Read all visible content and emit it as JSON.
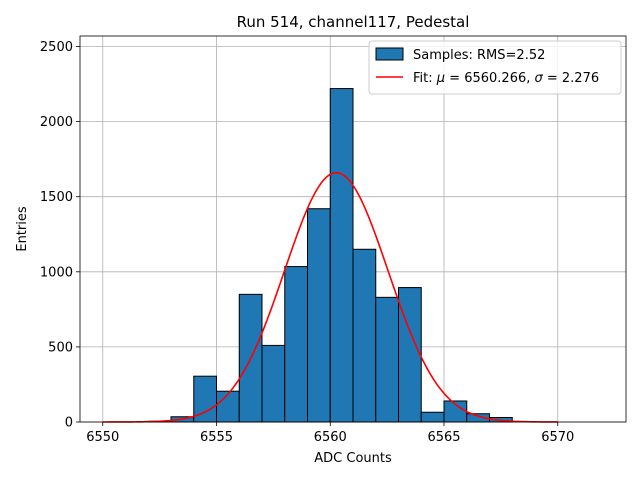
{
  "chart_data": {
    "type": "bar",
    "title": "Run 514, channel117, Pedestal",
    "xlabel": "ADC Counts",
    "ylabel": "Entries",
    "xlim": [
      6549,
      6573
    ],
    "ylim": [
      0,
      2570
    ],
    "xticks": [
      6550,
      6555,
      6560,
      6565,
      6570
    ],
    "yticks": [
      0,
      500,
      1000,
      1500,
      2000,
      2500
    ],
    "grid": true,
    "legend_position": "top-right",
    "histogram": {
      "name": "Samples: RMS=2.52",
      "color": "#1f77b4",
      "bin_width": 1,
      "bin_edges": [
        6552,
        6553,
        6554,
        6555,
        6556,
        6557,
        6558,
        6559,
        6560,
        6561,
        6562,
        6563,
        6564,
        6565,
        6566,
        6567,
        6568
      ],
      "counts": [
        5,
        35,
        305,
        205,
        850,
        510,
        1035,
        1420,
        2220,
        1150,
        830,
        895,
        65,
        140,
        55,
        30
      ]
    },
    "fit": {
      "name": "Fit: μ = 6560.266, σ = 2.276",
      "label_prefix": "Fit: ",
      "label_mu_symbol": "μ",
      "label_mu_value": " = 6560.266, ",
      "label_sigma_symbol": "σ",
      "label_sigma_value": " = 2.276",
      "color": "#ff0000",
      "mu": 6560.266,
      "sigma": 2.276,
      "amplitude": 1660,
      "x_range": [
        6550,
        6570
      ]
    }
  }
}
